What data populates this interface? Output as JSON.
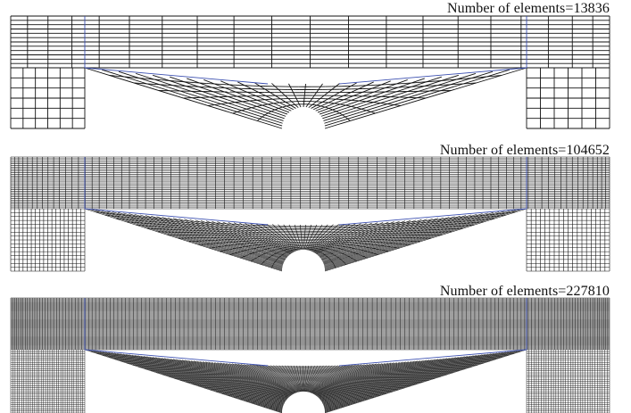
{
  "panels": [
    {
      "caption": "Number of elements=13836",
      "density": 1
    },
    {
      "caption": "Number of elements=104652",
      "density": 2
    },
    {
      "caption": "Number of elements=227810",
      "density": 3
    }
  ],
  "colors": {
    "mesh": "#111111",
    "block": "#3b4fb0",
    "background": "#ffffff"
  }
}
